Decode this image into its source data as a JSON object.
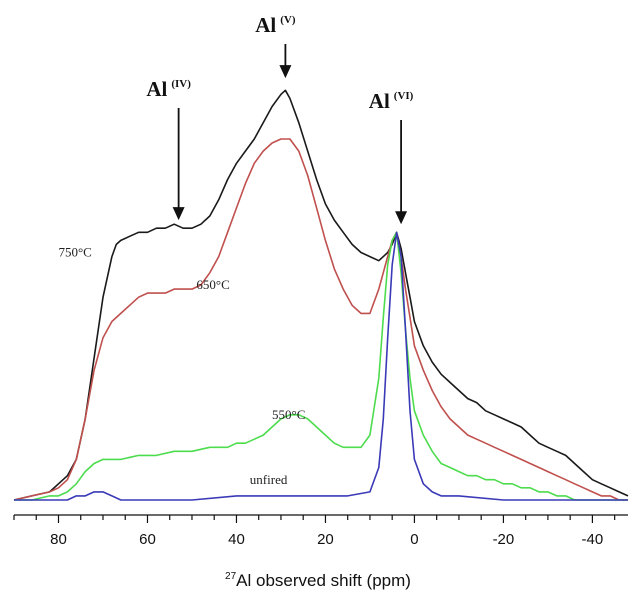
{
  "chart_data": {
    "type": "line",
    "title": "",
    "xlabel_sup": "27",
    "xlabel_main": "Al  observed shift (ppm)",
    "ylabel": "",
    "xlim": [
      90,
      -48
    ],
    "ylim": [
      0,
      1.06
    ],
    "x_reversed": true,
    "x_ticks": [
      80,
      60,
      40,
      20,
      0,
      -20,
      -40
    ],
    "x_tick_labels": [
      "80",
      "60",
      "40",
      "20",
      "0",
      "-20",
      "-40"
    ],
    "grid": false,
    "legend": "none",
    "series": [
      {
        "name": "750°C",
        "color": "#1a1a1a",
        "x": [
          90,
          86,
          82,
          80,
          78,
          76,
          74,
          72,
          70,
          68,
          67,
          66,
          64,
          62,
          60,
          58,
          56,
          54,
          52,
          50,
          48,
          46,
          44,
          42,
          40,
          38,
          36,
          34,
          32,
          30,
          29,
          28,
          26,
          24,
          22,
          20,
          18,
          16,
          14,
          12,
          10,
          8,
          6,
          5,
          4,
          3,
          2,
          1,
          0,
          -2,
          -4,
          -6,
          -8,
          -10,
          -12,
          -14,
          -16,
          -18,
          -20,
          -22,
          -24,
          -26,
          -28,
          -30,
          -32,
          -34,
          -36,
          -38,
          -40,
          -42,
          -44,
          -46,
          -48
        ],
        "y": [
          0.0,
          0.01,
          0.02,
          0.04,
          0.06,
          0.1,
          0.2,
          0.35,
          0.5,
          0.6,
          0.63,
          0.64,
          0.65,
          0.66,
          0.66,
          0.67,
          0.67,
          0.68,
          0.67,
          0.67,
          0.68,
          0.7,
          0.74,
          0.79,
          0.83,
          0.86,
          0.89,
          0.93,
          0.97,
          1.0,
          1.01,
          0.99,
          0.93,
          0.86,
          0.79,
          0.73,
          0.69,
          0.66,
          0.63,
          0.61,
          0.6,
          0.59,
          0.61,
          0.63,
          0.66,
          0.62,
          0.56,
          0.5,
          0.44,
          0.38,
          0.34,
          0.31,
          0.29,
          0.27,
          0.25,
          0.24,
          0.22,
          0.21,
          0.2,
          0.19,
          0.18,
          0.16,
          0.14,
          0.13,
          0.12,
          0.11,
          0.09,
          0.07,
          0.05,
          0.04,
          0.03,
          0.02,
          0.01
        ]
      },
      {
        "name": "650°C",
        "color": "#c0504d",
        "x": [
          90,
          86,
          82,
          80,
          78,
          76,
          74,
          72,
          70,
          68,
          66,
          64,
          62,
          60,
          58,
          56,
          54,
          52,
          50,
          48,
          46,
          44,
          42,
          40,
          38,
          36,
          34,
          32,
          30,
          28,
          26,
          24,
          22,
          20,
          18,
          16,
          14,
          12,
          10,
          8,
          6,
          5,
          4,
          3,
          2,
          1,
          0,
          -2,
          -4,
          -6,
          -8,
          -10,
          -12,
          -14,
          -16,
          -18,
          -20,
          -22,
          -24,
          -26,
          -28,
          -30,
          -32,
          -34,
          -36,
          -38,
          -40,
          -42,
          -44,
          -46,
          -48
        ],
        "y": [
          0.0,
          0.01,
          0.02,
          0.03,
          0.05,
          0.1,
          0.2,
          0.32,
          0.4,
          0.44,
          0.46,
          0.48,
          0.5,
          0.51,
          0.51,
          0.51,
          0.52,
          0.52,
          0.52,
          0.53,
          0.56,
          0.6,
          0.66,
          0.72,
          0.78,
          0.83,
          0.86,
          0.88,
          0.89,
          0.89,
          0.86,
          0.8,
          0.72,
          0.64,
          0.57,
          0.52,
          0.48,
          0.46,
          0.46,
          0.52,
          0.6,
          0.64,
          0.66,
          0.6,
          0.52,
          0.45,
          0.38,
          0.32,
          0.27,
          0.23,
          0.2,
          0.18,
          0.16,
          0.15,
          0.14,
          0.13,
          0.12,
          0.11,
          0.1,
          0.09,
          0.08,
          0.07,
          0.06,
          0.05,
          0.04,
          0.03,
          0.02,
          0.01,
          0.01,
          0.0,
          0.0
        ]
      },
      {
        "name": "550°C",
        "color": "#4ddc4d",
        "x": [
          90,
          86,
          82,
          80,
          78,
          76,
          74,
          72,
          70,
          66,
          62,
          58,
          54,
          50,
          46,
          42,
          40,
          38,
          36,
          34,
          32,
          30,
          28,
          26,
          24,
          22,
          20,
          18,
          16,
          14,
          12,
          10,
          8,
          7,
          6,
          5,
          4,
          3,
          2,
          1,
          0,
          -2,
          -4,
          -6,
          -8,
          -10,
          -12,
          -14,
          -16,
          -18,
          -20,
          -22,
          -24,
          -26,
          -28,
          -30,
          -32,
          -34,
          -36,
          -38,
          -40,
          -44,
          -48
        ],
        "y": [
          0.0,
          0.0,
          0.01,
          0.01,
          0.02,
          0.04,
          0.07,
          0.09,
          0.1,
          0.1,
          0.11,
          0.11,
          0.12,
          0.12,
          0.13,
          0.13,
          0.14,
          0.14,
          0.15,
          0.16,
          0.18,
          0.2,
          0.21,
          0.21,
          0.2,
          0.18,
          0.16,
          0.14,
          0.13,
          0.13,
          0.13,
          0.16,
          0.3,
          0.45,
          0.58,
          0.64,
          0.66,
          0.56,
          0.42,
          0.3,
          0.22,
          0.16,
          0.12,
          0.09,
          0.08,
          0.07,
          0.06,
          0.06,
          0.05,
          0.05,
          0.04,
          0.04,
          0.03,
          0.03,
          0.02,
          0.02,
          0.01,
          0.01,
          0.0,
          0.0,
          0.0,
          0.0,
          0.0
        ]
      },
      {
        "name": "unfired",
        "color": "#3a3ab8",
        "x": [
          90,
          86,
          82,
          80,
          78,
          76,
          74,
          72,
          70,
          68,
          66,
          60,
          50,
          40,
          30,
          20,
          15,
          10,
          8,
          7,
          6,
          5,
          4,
          3,
          2,
          1,
          0,
          -2,
          -4,
          -6,
          -10,
          -20,
          -30,
          -40,
          -48
        ],
        "y": [
          0.0,
          0.0,
          0.0,
          0.0,
          0.0,
          0.01,
          0.01,
          0.02,
          0.02,
          0.01,
          0.0,
          0.0,
          0.0,
          0.01,
          0.01,
          0.01,
          0.01,
          0.02,
          0.08,
          0.2,
          0.4,
          0.58,
          0.66,
          0.6,
          0.42,
          0.22,
          0.1,
          0.04,
          0.02,
          0.01,
          0.01,
          0.0,
          0.0,
          0.0,
          0.0
        ]
      }
    ],
    "series_labels": [
      {
        "text": "750°C",
        "x": 80,
        "y": 0.6
      },
      {
        "text": "650°C",
        "x": 49,
        "y": 0.52
      },
      {
        "text": "550°C",
        "x": 32,
        "y": 0.2
      },
      {
        "text": "unfired",
        "x": 37,
        "y": 0.04
      }
    ],
    "annotations": [
      {
        "main": "Al",
        "sup": "(IV)",
        "x_arrow": 53,
        "y_tip": 0.68
      },
      {
        "main": "Al",
        "sup": "(V)",
        "x_arrow": 29,
        "y_tip": 1.03
      },
      {
        "main": "Al",
        "sup": "(VI)",
        "x_arrow": 3,
        "y_tip": 0.67
      }
    ]
  }
}
